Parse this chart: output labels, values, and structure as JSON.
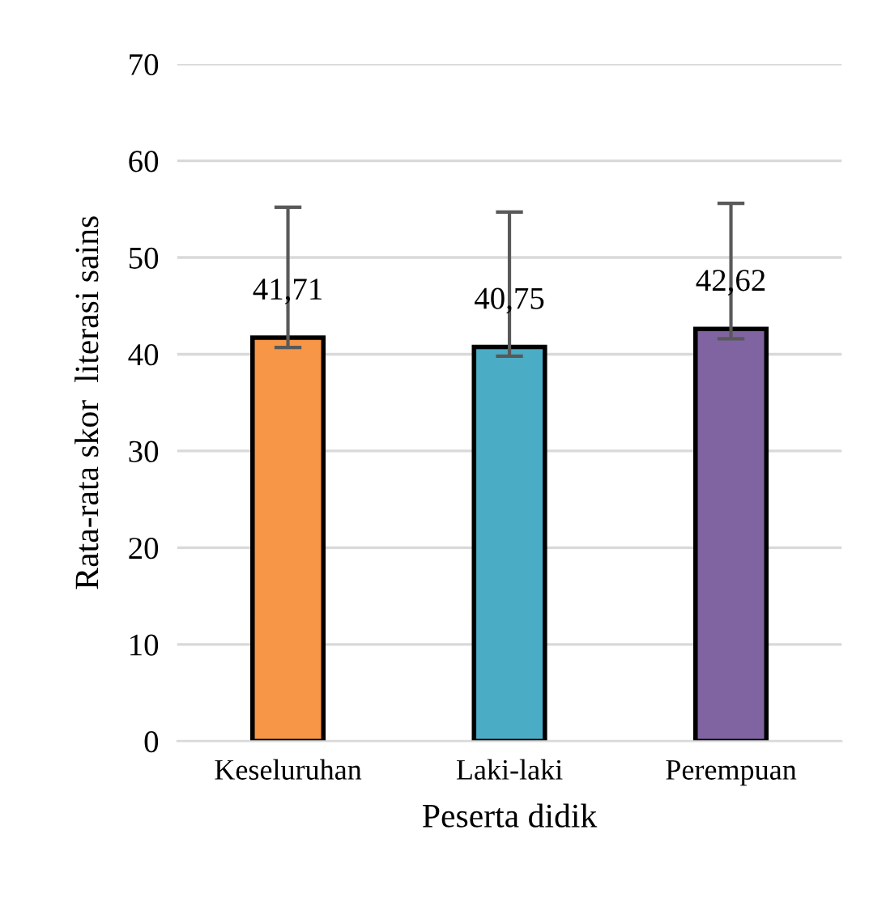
{
  "chart_data": {
    "type": "bar",
    "xlabel": "Peserta didik",
    "ylabel": "Rata-rata skor  literasi sains",
    "categories": [
      "Keseluruhan",
      "Laki-laki",
      "Perempuan"
    ],
    "values": [
      41.71,
      40.75,
      42.62
    ],
    "colors": [
      "#f79646",
      "#4bacc6",
      "#8064a2"
    ],
    "value_labels": [
      "41,71",
      "40,75",
      "42,62"
    ],
    "errors": [
      [
        40.7,
        55.2
      ],
      [
        39.8,
        54.7
      ],
      [
        41.6,
        55.6
      ]
    ],
    "ylim": [
      0,
      70
    ],
    "yticks": [
      0,
      10,
      20,
      30,
      40,
      50,
      60,
      70
    ],
    "grid": "y"
  }
}
